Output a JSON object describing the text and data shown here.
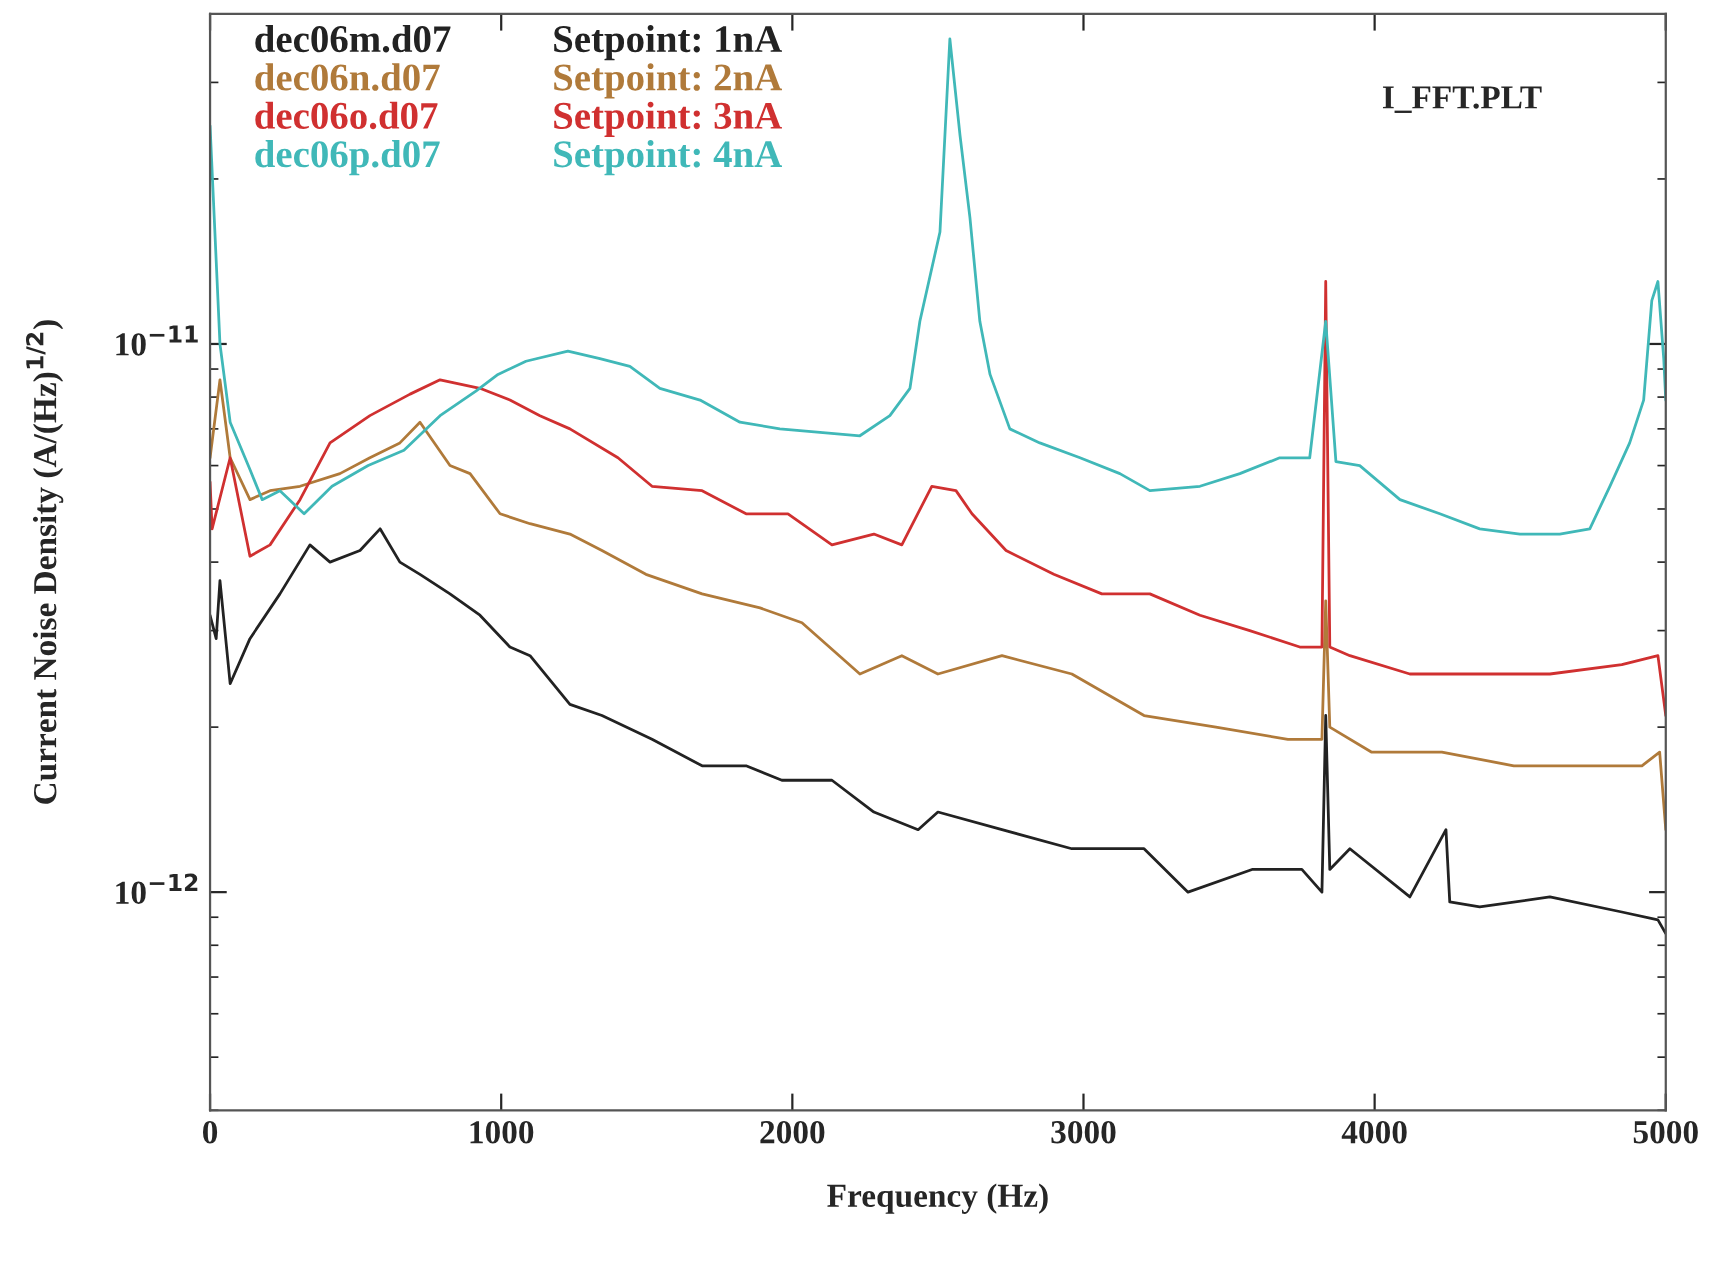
{
  "chart_data": {
    "type": "line",
    "xlabel": "Frequency (Hz)",
    "ylabel": "Current Noise Density (A/(Hz)$^{1/2}$)",
    "log": "y",
    "xlim": [
      0,
      5000
    ],
    "ylim": [
      4e-13,
      4e-11
    ],
    "xticks": [
      0,
      1000,
      2000,
      3000,
      4000,
      5000
    ],
    "yticks": [
      {
        "value": 1e-12,
        "label": "10$^{−12}$"
      },
      {
        "value": 1e-11,
        "label": "10$^{−11}$"
      }
    ],
    "grid": false,
    "legend": "top left",
    "marker": "none",
    "line_style": "solid",
    "annotations": [
      "Setpoint: 1nA",
      "Setpoint: 2nA",
      "Setpoint: 3nA",
      "Setpoint: 4nA",
      "I_FFT.PLT"
    ],
    "series": [
      {
        "name": "dec06m.d07",
        "color": "#222222",
        "x": [
          0,
          21,
          34,
          69,
          137,
          240,
          343,
          412,
          515,
          584,
          652,
          721,
          824,
          927,
          1030,
          1099,
          1236,
          1346,
          1518,
          1690,
          1841,
          1964,
          2136,
          2280,
          2432,
          2500,
          2720,
          2960,
          3208,
          3359,
          3579,
          3750,
          3819,
          3832,
          3846,
          3915,
          4121,
          4245,
          4258,
          4361,
          4602,
          4849,
          4973,
          5000
        ],
        "values": [
          3.2e-12,
          2.9e-12,
          3.7e-12,
          2.4e-12,
          2.9e-12,
          3.5e-12,
          4.3e-12,
          4e-12,
          4.2e-12,
          4.6e-12,
          4e-12,
          3.8e-12,
          3.5e-12,
          3.2e-12,
          2.8e-12,
          2.7e-12,
          2.2e-12,
          2.1e-12,
          1.9e-12,
          1.7e-12,
          1.7e-12,
          1.6e-12,
          1.6e-12,
          1.4e-12,
          1.3e-12,
          1.4e-12,
          1.3e-12,
          1.2e-12,
          1.2e-12,
          1e-12,
          1.1e-12,
          1.1e-12,
          1e-12,
          2.1e-12,
          1.1e-12,
          1.2e-12,
          9.8e-13,
          1.3e-12,
          9.6e-13,
          9.4e-13,
          9.8e-13,
          9.2e-13,
          8.9e-13,
          8.4e-13
        ]
      },
      {
        "name": "dec06n.d07",
        "color": "#b07a3a",
        "x": [
          0,
          34,
          69,
          137,
          206,
          309,
          446,
          549,
          652,
          721,
          824,
          893,
          996,
          1099,
          1236,
          1346,
          1497,
          1690,
          1889,
          2033,
          2232,
          2376,
          2500,
          2720,
          2960,
          3208,
          3455,
          3702,
          3819,
          3832,
          3846,
          3990,
          4231,
          4478,
          4725,
          4918,
          4979,
          5000
        ],
        "values": [
          6.2e-12,
          8.6e-12,
          6.2e-12,
          5.2e-12,
          5.4e-12,
          5.5e-12,
          5.8e-12,
          6.2e-12,
          6.6e-12,
          7.2e-12,
          6e-12,
          5.8e-12,
          4.9e-12,
          4.7e-12,
          4.5e-12,
          4.2e-12,
          3.8e-12,
          3.5e-12,
          3.3e-12,
          3.1e-12,
          2.5e-12,
          2.7e-12,
          2.5e-12,
          2.7e-12,
          2.5e-12,
          2.1e-12,
          2e-12,
          1.9e-12,
          1.9e-12,
          3.4e-12,
          2e-12,
          1.8e-12,
          1.8e-12,
          1.7e-12,
          1.7e-12,
          1.7e-12,
          1.8e-12,
          1.3e-12
        ]
      },
      {
        "name": "dec06o.d07",
        "color": "#d03030",
        "x": [
          0,
          7,
          69,
          137,
          206,
          309,
          412,
          549,
          687,
          790,
          927,
          1030,
          1133,
          1236,
          1401,
          1518,
          1690,
          1841,
          1985,
          2136,
          2280,
          2376,
          2479,
          2562,
          2617,
          2734,
          2898,
          3063,
          3228,
          3400,
          3571,
          3743,
          3819,
          3832,
          3846,
          3915,
          4121,
          4361,
          4602,
          4849,
          4973,
          5000
        ],
        "values": [
          5.6e-12,
          4.6e-12,
          6.2e-12,
          4.1e-12,
          4.3e-12,
          5.2e-12,
          6.6e-12,
          7.4e-12,
          8.1e-12,
          8.6e-12,
          8.3e-12,
          7.9e-12,
          7.4e-12,
          7e-12,
          6.2e-12,
          5.5e-12,
          5.4e-12,
          4.9e-12,
          4.9e-12,
          4.3e-12,
          4.5e-12,
          4.3e-12,
          5.5e-12,
          5.4e-12,
          4.9e-12,
          4.2e-12,
          3.8e-12,
          3.5e-12,
          3.5e-12,
          3.2e-12,
          3e-12,
          2.8e-12,
          2.8e-12,
          1.3e-11,
          2.8e-12,
          2.7e-12,
          2.5e-12,
          2.5e-12,
          2.5e-12,
          2.6e-12,
          2.7e-12,
          2.1e-12
        ]
      },
      {
        "name": "dec06p.d07",
        "color": "#40b8b8",
        "x": [
          0,
          34,
          69,
          137,
          179,
          240,
          323,
          419,
          543,
          666,
          790,
          913,
          989,
          1085,
          1229,
          1339,
          1442,
          1545,
          1683,
          1820,
          1957,
          2095,
          2232,
          2335,
          2404,
          2438,
          2507,
          2541,
          2576,
          2610,
          2644,
          2679,
          2747,
          2850,
          2988,
          3125,
          3228,
          3400,
          3537,
          3674,
          3777,
          3832,
          3867,
          3949,
          4087,
          4224,
          4361,
          4499,
          4636,
          4739,
          4808,
          4876,
          4924,
          4952,
          4973,
          4993,
          5000
        ],
        "values": [
          2.5e-11,
          1e-11,
          7.2e-12,
          5.9e-12,
          5.2e-12,
          5.4e-12,
          4.9e-12,
          5.5e-12,
          6e-12,
          6.4e-12,
          7.4e-12,
          8.2e-12,
          8.8e-12,
          9.3e-12,
          9.7e-12,
          9.4e-12,
          9.1e-12,
          8.3e-12,
          7.9e-12,
          7.2e-12,
          7e-12,
          6.9e-12,
          6.8e-12,
          7.4e-12,
          8.3e-12,
          1.1e-11,
          1.6e-11,
          3.6e-11,
          2.4e-11,
          1.7e-11,
          1.1e-11,
          8.8e-12,
          7e-12,
          6.6e-12,
          6.2e-12,
          5.8e-12,
          5.4e-12,
          5.5e-12,
          5.8e-12,
          6.2e-12,
          6.2e-12,
          1.1e-11,
          6.1e-12,
          6e-12,
          5.2e-12,
          4.9e-12,
          4.6e-12,
          4.5e-12,
          4.5e-12,
          4.6e-12,
          5.5e-12,
          6.6e-12,
          7.9e-12,
          1.2e-11,
          1.3e-11,
          9.4e-12,
          7.9e-12
        ]
      }
    ]
  }
}
